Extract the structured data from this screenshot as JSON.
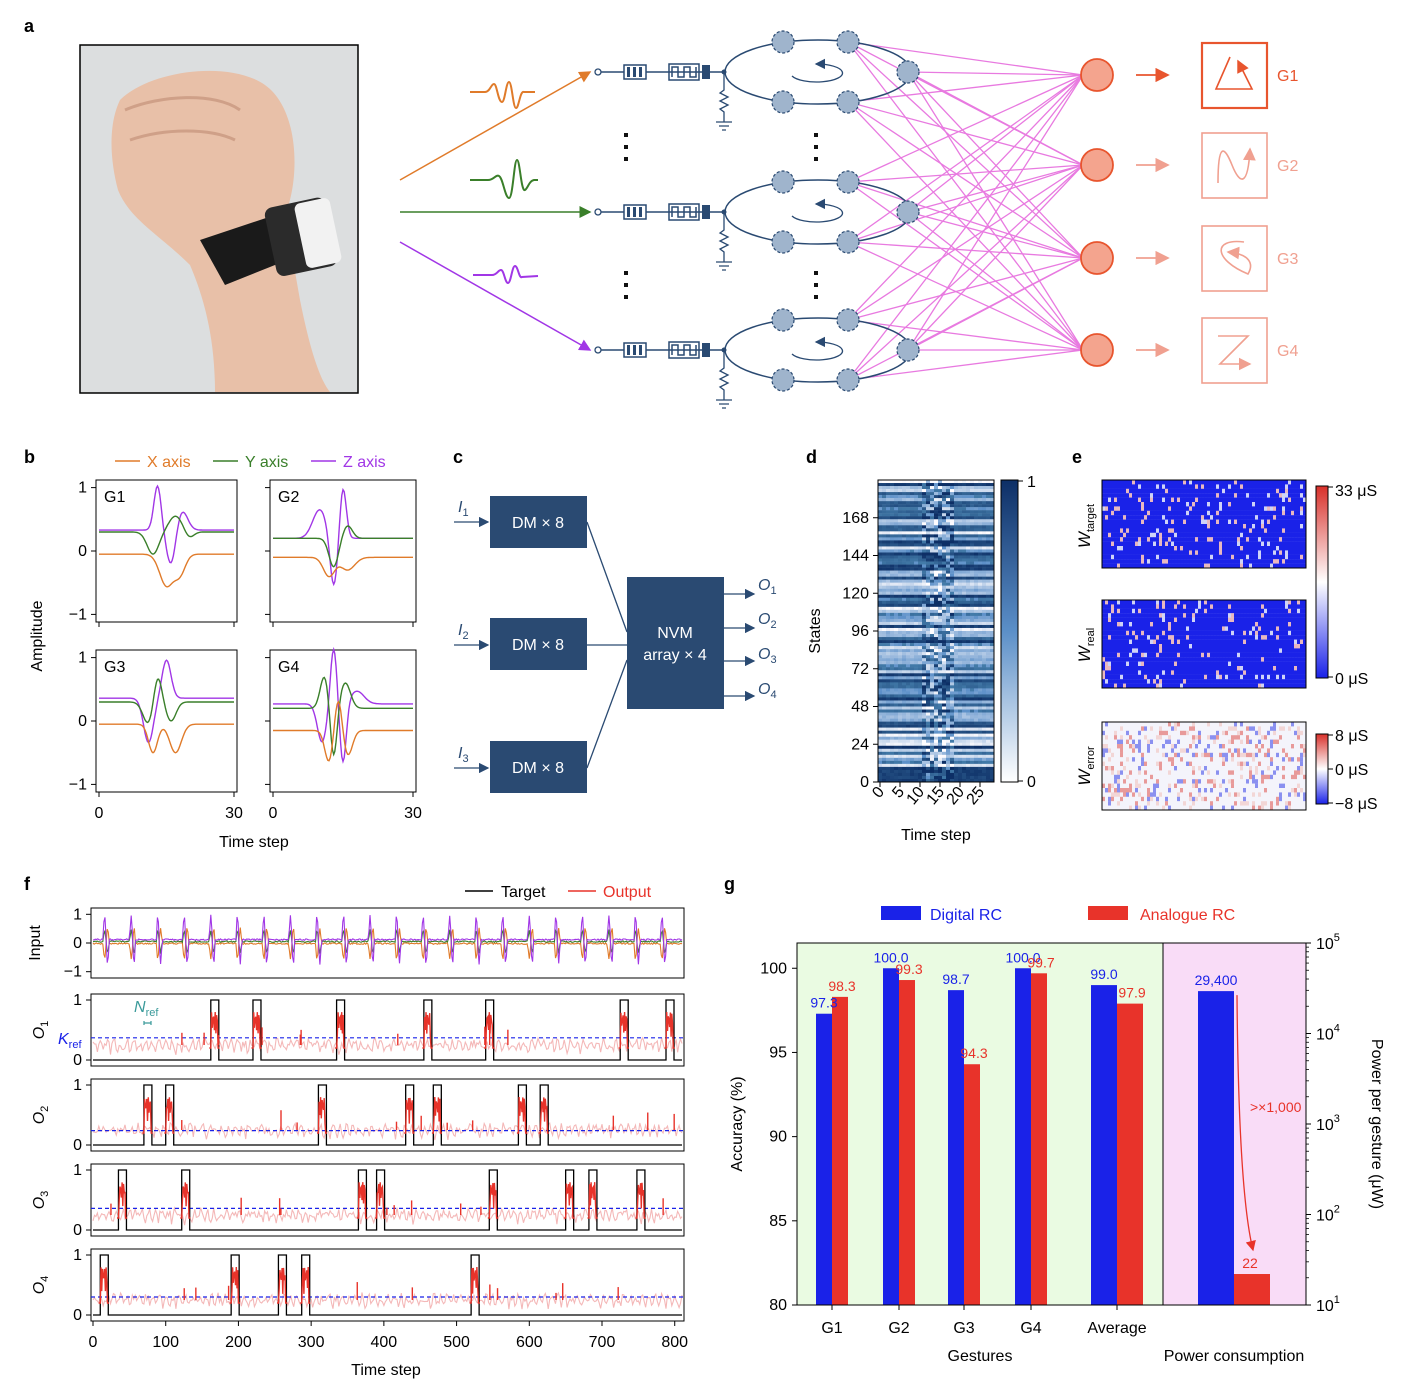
{
  "panel_labels": [
    "a",
    "b",
    "c",
    "d",
    "e",
    "f",
    "g"
  ],
  "colors": {
    "x_axis": "#e07b2a",
    "y_axis": "#3a7f2a",
    "z_axis": "#a136e6",
    "navy": "#2a4a72",
    "node": "#f4a48e",
    "node_stroke": "#e8552e",
    "pink": "#e87ae0",
    "blue": "#1a22e8",
    "red": "#e8332a"
  },
  "panel_a": {
    "gesture_labels": [
      "G1",
      "G2",
      "G3",
      "G4"
    ],
    "icons": [
      "triangle-gesture-icon",
      "n-gesture-icon",
      "loop-gesture-icon",
      "z-gesture-icon"
    ]
  },
  "panel_b": {
    "legend": [
      "X axis",
      "Y axis",
      "Z axis"
    ],
    "ylabel": "Amplitude",
    "xlabel": "Time step",
    "subplots": [
      "G1",
      "G2",
      "G3",
      "G4"
    ],
    "yticks": [
      "1",
      "0",
      "−1"
    ],
    "xticks": [
      "0",
      "30"
    ]
  },
  "panel_c": {
    "inputs": [
      "I1",
      "I2",
      "I3"
    ],
    "dm_label": "DM × 8",
    "nvm_line1": "NVM",
    "nvm_line2": "array × 4",
    "outputs": [
      "O1",
      "O2",
      "O3",
      "O4"
    ]
  },
  "panel_d": {
    "ylabel": "States",
    "xlabel": "Time step",
    "yticks": [
      "168",
      "144",
      "120",
      "96",
      "72",
      "48",
      "24",
      "0"
    ],
    "xticks": [
      "0",
      "5",
      "10",
      "15",
      "20",
      "25"
    ],
    "cbar": [
      "1",
      "0"
    ]
  },
  "panel_e": {
    "rows": [
      "target",
      "real",
      "error"
    ],
    "w_symbol": "W",
    "cbar1": [
      "33 μS",
      "0 μS"
    ],
    "cbar2": [
      "8 μS",
      "0 μS",
      "−8 μS"
    ]
  },
  "panel_f": {
    "legend": [
      "Target",
      "Output"
    ],
    "row_labels": [
      "Input",
      "O1",
      "O2",
      "O3",
      "O4"
    ],
    "input_yticks": [
      "1",
      "0",
      "−1"
    ],
    "out_yticks": [
      "1",
      "0"
    ],
    "xticks": [
      "0",
      "100",
      "200",
      "300",
      "400",
      "500",
      "600",
      "700",
      "800"
    ],
    "xlabel": "Time step",
    "n_ref": "N",
    "k_ref": "K",
    "ref_sub": "ref"
  },
  "chart_data": {
    "type": "bar",
    "legend": [
      "Digital RC",
      "Analogue RC"
    ],
    "categories": [
      "G1",
      "G2",
      "G3",
      "G4",
      "Average"
    ],
    "series": [
      {
        "name": "Digital RC",
        "values": [
          97.3,
          100.0,
          98.7,
          100.0,
          99.0
        ]
      },
      {
        "name": "Analogue RC",
        "values": [
          98.3,
          99.3,
          94.3,
          99.7,
          97.9
        ]
      }
    ],
    "value_labels_digital": [
      "97.3",
      "100.0",
      "98.7",
      "100.0",
      "99.0"
    ],
    "value_labels_analogue": [
      "98.3",
      "99.3",
      "94.3",
      "99.7",
      "97.9"
    ],
    "ylim": [
      80,
      101.5
    ],
    "yticks": [
      "100",
      "95",
      "90",
      "85",
      "80"
    ],
    "ylabel": "Accuracy (%)",
    "xlabel": "Gestures",
    "power": {
      "digital": 29400,
      "analogue": 22,
      "digital_label": "29,400",
      "analogue_label": "22",
      "ratio_label": ">×1,000",
      "ylabel": "Power per gesture (μW)",
      "xlabel": "Power consumption",
      "yticks": [
        "10",
        "10",
        "10",
        "10",
        "10"
      ],
      "yexps": [
        "5",
        "4",
        "3",
        "2",
        "1"
      ]
    }
  }
}
